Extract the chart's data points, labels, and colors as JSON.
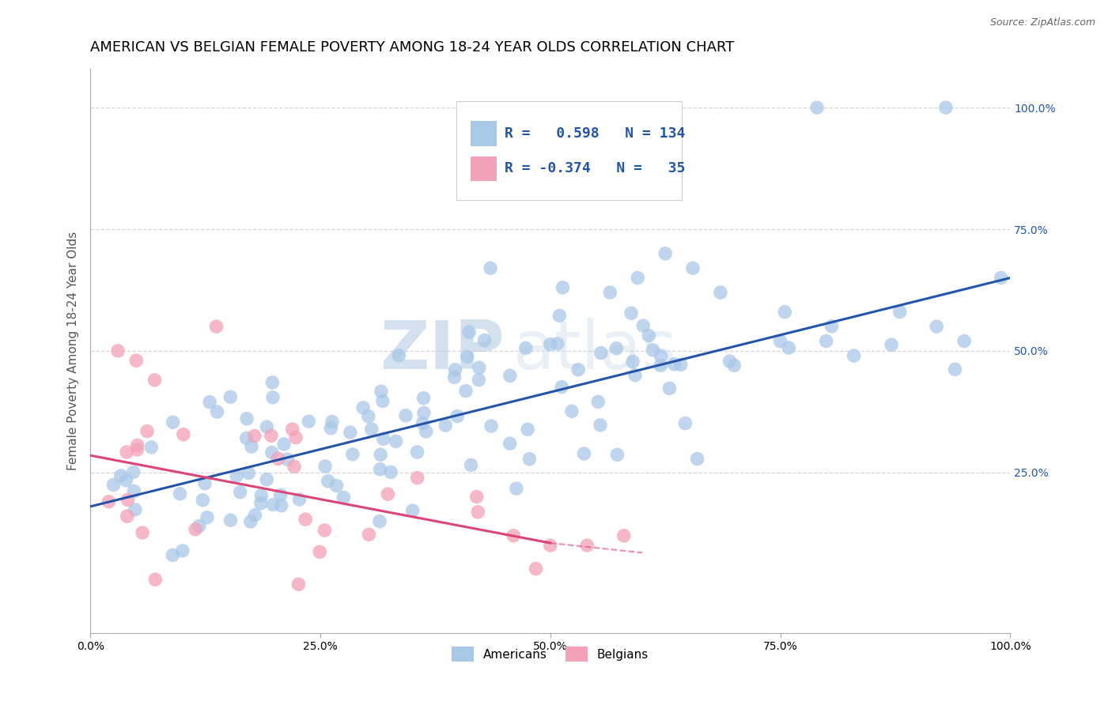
{
  "title": "AMERICAN VS BELGIAN FEMALE POVERTY AMONG 18-24 YEAR OLDS CORRELATION CHART",
  "source": "Source: ZipAtlas.com",
  "ylabel": "Female Poverty Among 18-24 Year Olds",
  "xlim": [
    0,
    1
  ],
  "ylim": [
    -0.08,
    1.08
  ],
  "x_ticks": [
    0,
    0.25,
    0.5,
    0.75,
    1.0
  ],
  "x_tick_labels": [
    "0.0%",
    "25.0%",
    "50.0%",
    "75.0%",
    "100.0%"
  ],
  "y_ticks_right": [
    0.25,
    0.5,
    0.75,
    1.0
  ],
  "y_tick_labels_right": [
    "25.0%",
    "50.0%",
    "75.0%",
    "100.0%"
  ],
  "american_color": "#a8c8e8",
  "belgian_color": "#f4a0b8",
  "american_line_color": "#2255aa",
  "belgian_line_color": "#dd4477",
  "R_american": 0.598,
  "N_american": 134,
  "R_belgian": -0.374,
  "N_belgian": 35,
  "legend_label_american": "Americans",
  "legend_label_belgian": "Belgians",
  "watermark_zip": "ZIP",
  "watermark_atlas": "atlas",
  "background_color": "#ffffff",
  "grid_color": "#cccccc",
  "title_fontsize": 13,
  "axis_label_fontsize": 11,
  "tick_fontsize": 10,
  "legend_fontsize": 13
}
